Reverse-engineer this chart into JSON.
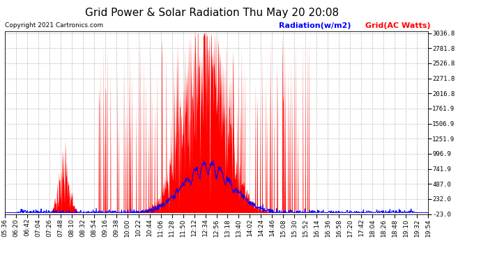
{
  "title": "Grid Power & Solar Radiation Thu May 20 20:08",
  "copyright": "Copyright 2021 Cartronics.com",
  "legend_radiation": "Radiation(w/m2)",
  "legend_grid": "Grid(AC Watts)",
  "yticks": [
    3036.8,
    2781.8,
    2526.8,
    2271.8,
    2016.8,
    1761.9,
    1506.9,
    1251.9,
    996.9,
    741.9,
    487.0,
    232.0,
    -23.0
  ],
  "ymin": -23.0,
  "ymax": 3036.8,
  "xtick_labels": [
    "05:36",
    "06:20",
    "06:42",
    "07:04",
    "07:26",
    "07:48",
    "08:10",
    "08:32",
    "08:54",
    "09:16",
    "09:38",
    "10:00",
    "10:22",
    "10:44",
    "11:06",
    "11:28",
    "11:50",
    "12:12",
    "12:34",
    "12:56",
    "13:18",
    "13:40",
    "14:02",
    "14:24",
    "14:46",
    "15:08",
    "15:30",
    "15:52",
    "16:14",
    "16:36",
    "16:58",
    "17:20",
    "17:42",
    "18:04",
    "18:26",
    "18:48",
    "19:10",
    "19:32",
    "19:54"
  ],
  "background_color": "#ffffff",
  "plot_bg_color": "#ffffff",
  "grid_color": "#bbbbbb",
  "fill_color": "#ff0000",
  "radiation_color": "#0000ff",
  "title_fontsize": 11,
  "tick_fontsize": 6.5,
  "copyright_fontsize": 6.5,
  "legend_fontsize": 8
}
